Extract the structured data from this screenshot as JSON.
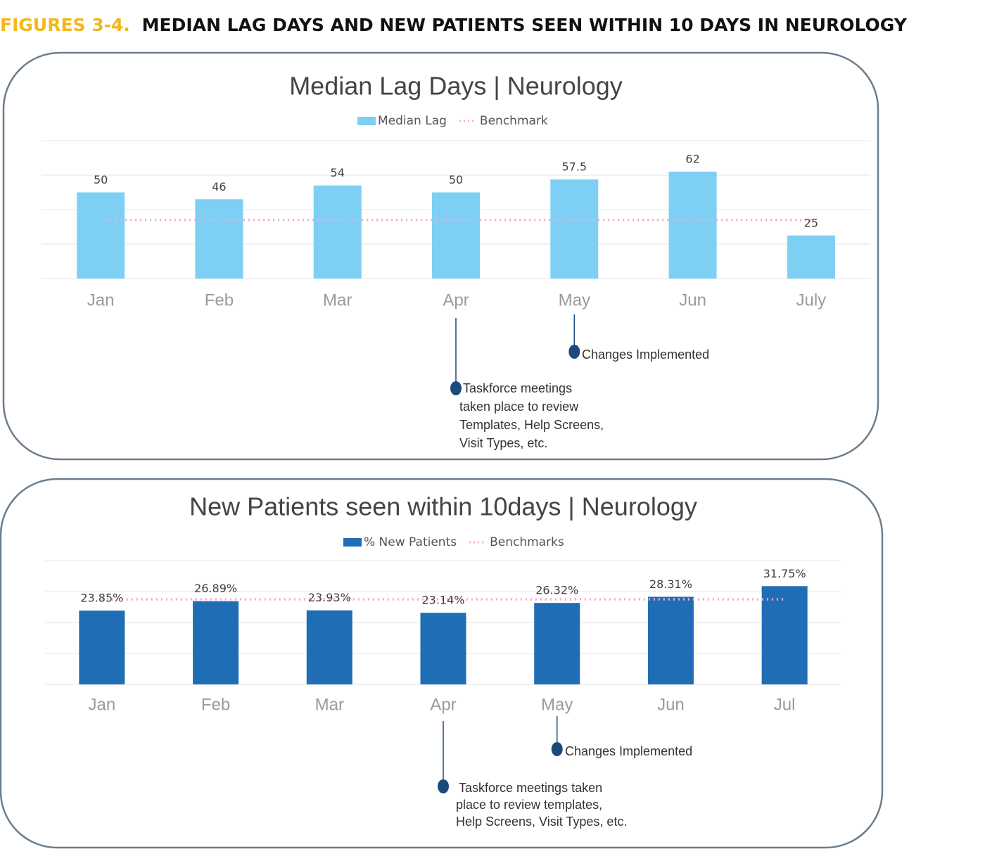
{
  "figure_label": "FIGURES 3-4.",
  "figure_title": "MEDIAN LAG DAYS AND NEW PATIENTS SEEN WITHIN 10 DAYS IN NEUROLOGY",
  "chart_data": [
    {
      "type": "bar",
      "title": "Median Lag Days | Neurology",
      "categories": [
        "Jan",
        "Feb",
        "Mar",
        "Apr",
        "May",
        "Jun",
        "July"
      ],
      "series": [
        {
          "name": "Median Lag",
          "color": "#7dd0f4",
          "values": [
            50,
            46,
            54,
            50,
            57.5,
            62,
            25
          ]
        },
        {
          "name": "Benchmark",
          "color": "#f2a9d2",
          "style": "dotted",
          "values": [
            34,
            34,
            34,
            34,
            34,
            34,
            34
          ]
        }
      ],
      "ylim": [
        0,
        80
      ],
      "yticks": [
        0,
        20,
        40,
        60,
        80
      ],
      "grid": true,
      "annotations": [
        {
          "lines": [
            "Changes Implemented"
          ]
        },
        {
          "lines": [
            "Taskforce meetings",
            "taken place to review",
            "Templates, Help Screens,",
            "Visit Types, etc."
          ]
        }
      ]
    },
    {
      "type": "bar",
      "title": "New Patients seen within 10days | Neurology",
      "categories": [
        "Jan",
        "Feb",
        "Mar",
        "Apr",
        "May",
        "Jun",
        "Jul"
      ],
      "series": [
        {
          "name": "% New Patients",
          "color": "#1f6db5",
          "values": [
            23.85,
            26.89,
            23.93,
            23.14,
            26.32,
            28.31,
            31.75
          ],
          "value_labels": [
            "23.85%",
            "26.89%",
            "23.93%",
            "23.14%",
            "26.32%",
            "28.31%",
            "31.75%"
          ]
        },
        {
          "name": "Benchmarks",
          "color": "#f2a9d2",
          "style": "dotted",
          "values": [
            27.5,
            27.5,
            27.5,
            27.5,
            27.5,
            27.5,
            27.5
          ]
        }
      ],
      "ylim": [
        0,
        40
      ],
      "yticks": [
        0,
        10,
        20,
        30,
        40
      ],
      "grid": true,
      "annotations": [
        {
          "lines": [
            "Changes Implemented"
          ]
        },
        {
          "lines": [
            "Taskforce meetings taken",
            "place to review templates,",
            "Help Screens, Visit Types, etc."
          ]
        }
      ]
    }
  ]
}
